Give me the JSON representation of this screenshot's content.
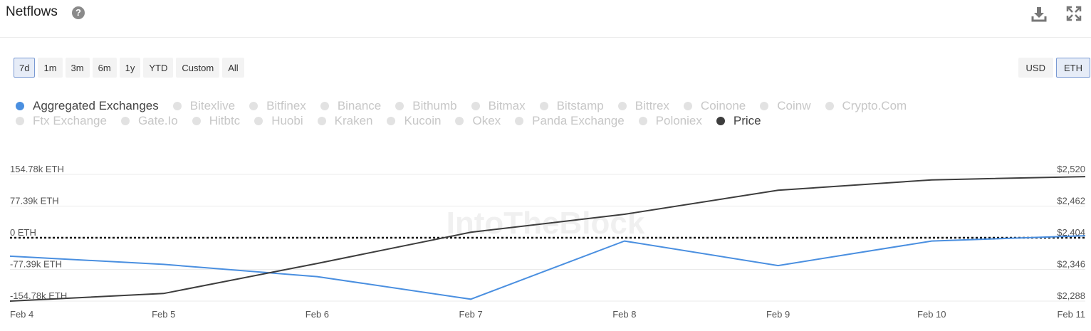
{
  "header": {
    "title": "Netflows",
    "help_icon": "?"
  },
  "toolbar": {
    "download_icon": "download-icon",
    "expand_icon": "expand-icon"
  },
  "range_buttons": [
    "7d",
    "1m",
    "3m",
    "6m",
    "1y",
    "YTD",
    "Custom",
    "All"
  ],
  "active_range": "7d",
  "currency_buttons": [
    "USD",
    "ETH"
  ],
  "active_currency": "ETH",
  "legend_row1": [
    "Aggregated Exchanges",
    "Bitexlive",
    "Bitfinex",
    "Binance",
    "Bithumb",
    "Bitmax",
    "Bitstamp",
    "Bittrex",
    "Coinone",
    "Coinw",
    "Crypto.Com"
  ],
  "legend_row2": [
    "Ftx Exchange",
    "Gate.Io",
    "Hitbtc",
    "Huobi",
    "Kraken",
    "Kucoin",
    "Okex",
    "Panda Exchange",
    "Poloniex",
    "Price"
  ],
  "legend_active": {
    "Aggregated Exchanges": "#4a8fe0",
    "Price": "#3d3d3d"
  },
  "watermark": "IntoTheBlock",
  "colors": {
    "netflow_line": "#4a8fe0",
    "price_line": "#3d3d3d",
    "zero_line": "#111111",
    "grid": "#ebebeb"
  },
  "chart_data": {
    "type": "line",
    "x": [
      "Feb 4",
      "Feb 5",
      "Feb 6",
      "Feb 7",
      "Feb 8",
      "Feb 9",
      "Feb 10",
      "Feb 11"
    ],
    "left_axis": {
      "ticks": [
        "154.78k ETH",
        "77.39k ETH",
        "0 ETH",
        "-77.39k ETH",
        "-154.78k ETH"
      ],
      "values": [
        154780,
        77390,
        0,
        -77390,
        -154780
      ],
      "ylim": [
        -154780,
        154780
      ]
    },
    "right_axis": {
      "ticks": [
        "$2,520",
        "$2,462",
        "$2,404",
        "$2,346",
        "$2,288"
      ],
      "values": [
        2520,
        2462,
        2404,
        2346,
        2288
      ],
      "ylim": [
        2288,
        2520
      ]
    },
    "zero_line": 0,
    "grid": true,
    "series": [
      {
        "name": "Aggregated Exchanges",
        "axis": "left",
        "color": "#4a8fe0",
        "values": [
          -45000,
          -65000,
          -95000,
          -150000,
          -8000,
          -68000,
          -8000,
          5000
        ]
      },
      {
        "name": "Price",
        "axis": "right",
        "color": "#3d3d3d",
        "values": [
          2288,
          2302,
          2357,
          2414,
          2447,
          2491,
          2510,
          2516
        ]
      }
    ]
  }
}
